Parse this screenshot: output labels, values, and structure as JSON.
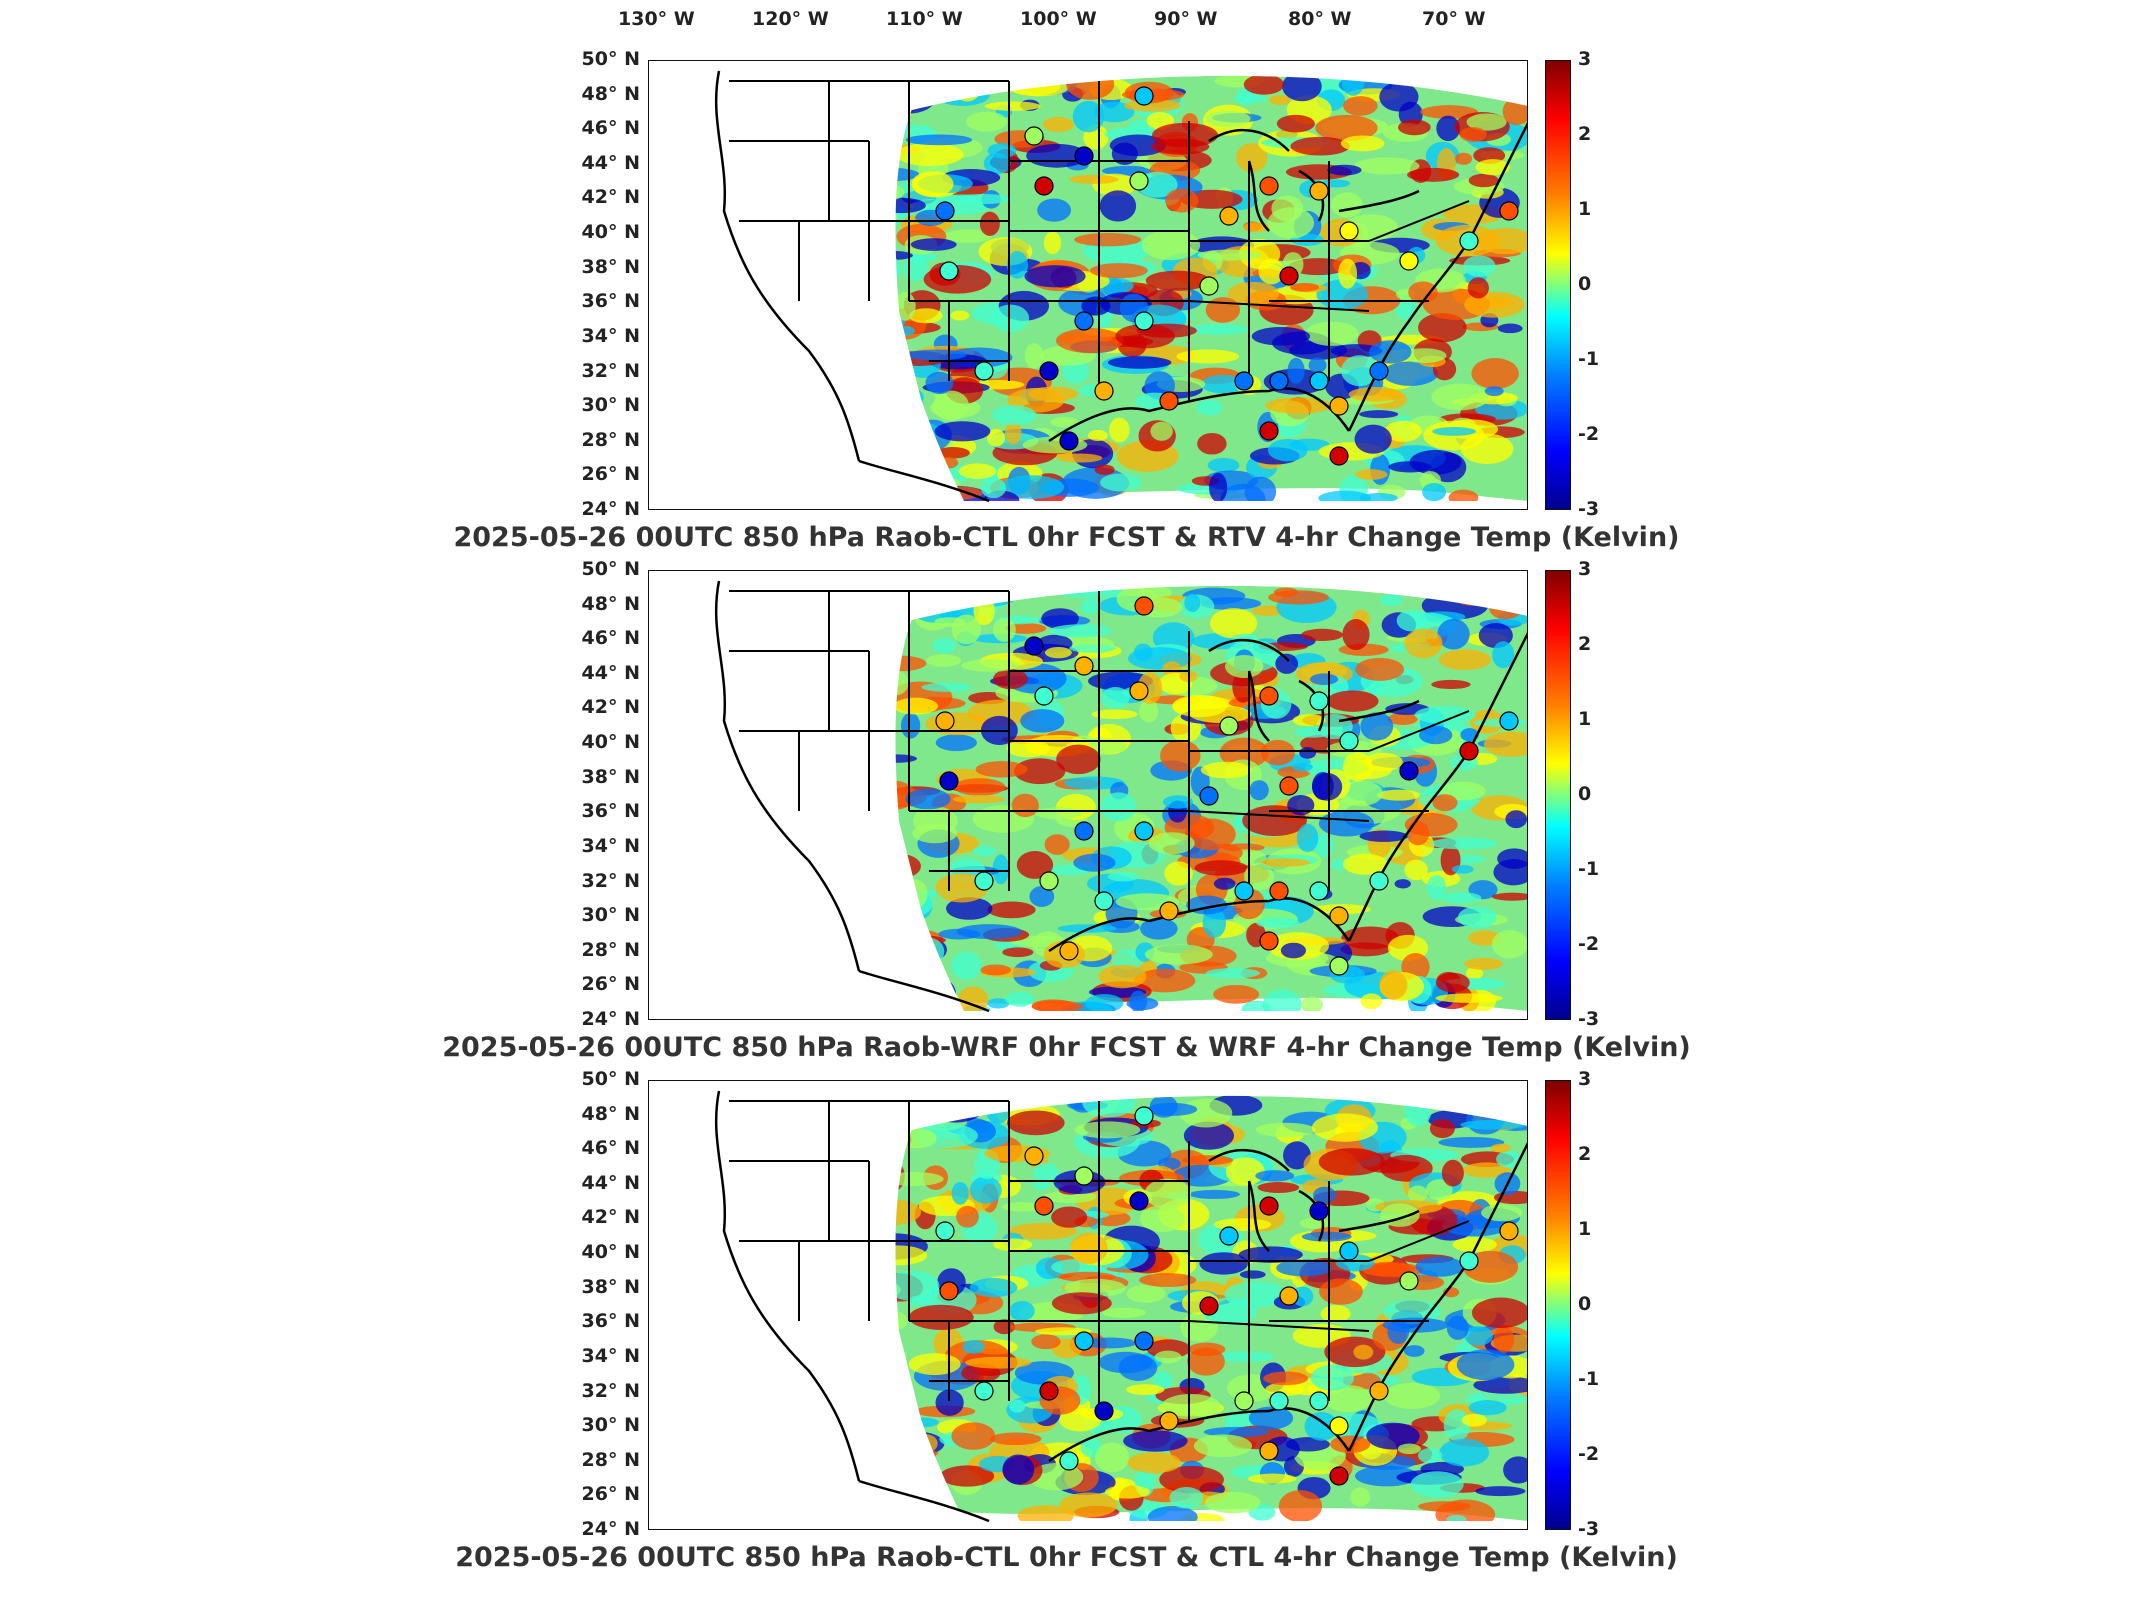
{
  "lon_labels": [
    "130° W",
    "120° W",
    "110° W",
    "100° W",
    "90° W",
    "80° W",
    "70° W"
  ],
  "lat_labels": [
    "50° N",
    "48° N",
    "46° N",
    "44° N",
    "42° N",
    "40° N",
    "38° N",
    "36° N",
    "34° N",
    "32° N",
    "30° N",
    "28° N",
    "26° N",
    "24° N"
  ],
  "colorbar_ticks": [
    "3",
    "2",
    "1",
    "0",
    "-1",
    "-2",
    "-3"
  ],
  "colorbar_colors": [
    "#00008f",
    "#0000ff",
    "#0080ff",
    "#00ffff",
    "#80ff80",
    "#ffff00",
    "#ff8000",
    "#ff0000",
    "#800000"
  ],
  "panels": [
    {
      "title": "2025-05-26 00UTC 850 hPa Raob-CTL 0hr FCST & RTV 4-hr Change Temp (Kelvin)"
    },
    {
      "title": "2025-05-26 00UTC 850 hPa Raob-WRF 0hr FCST & WRF 4-hr Change Temp (Kelvin)"
    },
    {
      "title": "2025-05-26 00UTC 850 hPa Raob-CTL 0hr FCST & CTL 4-hr Change Temp (Kelvin)"
    }
  ]
}
